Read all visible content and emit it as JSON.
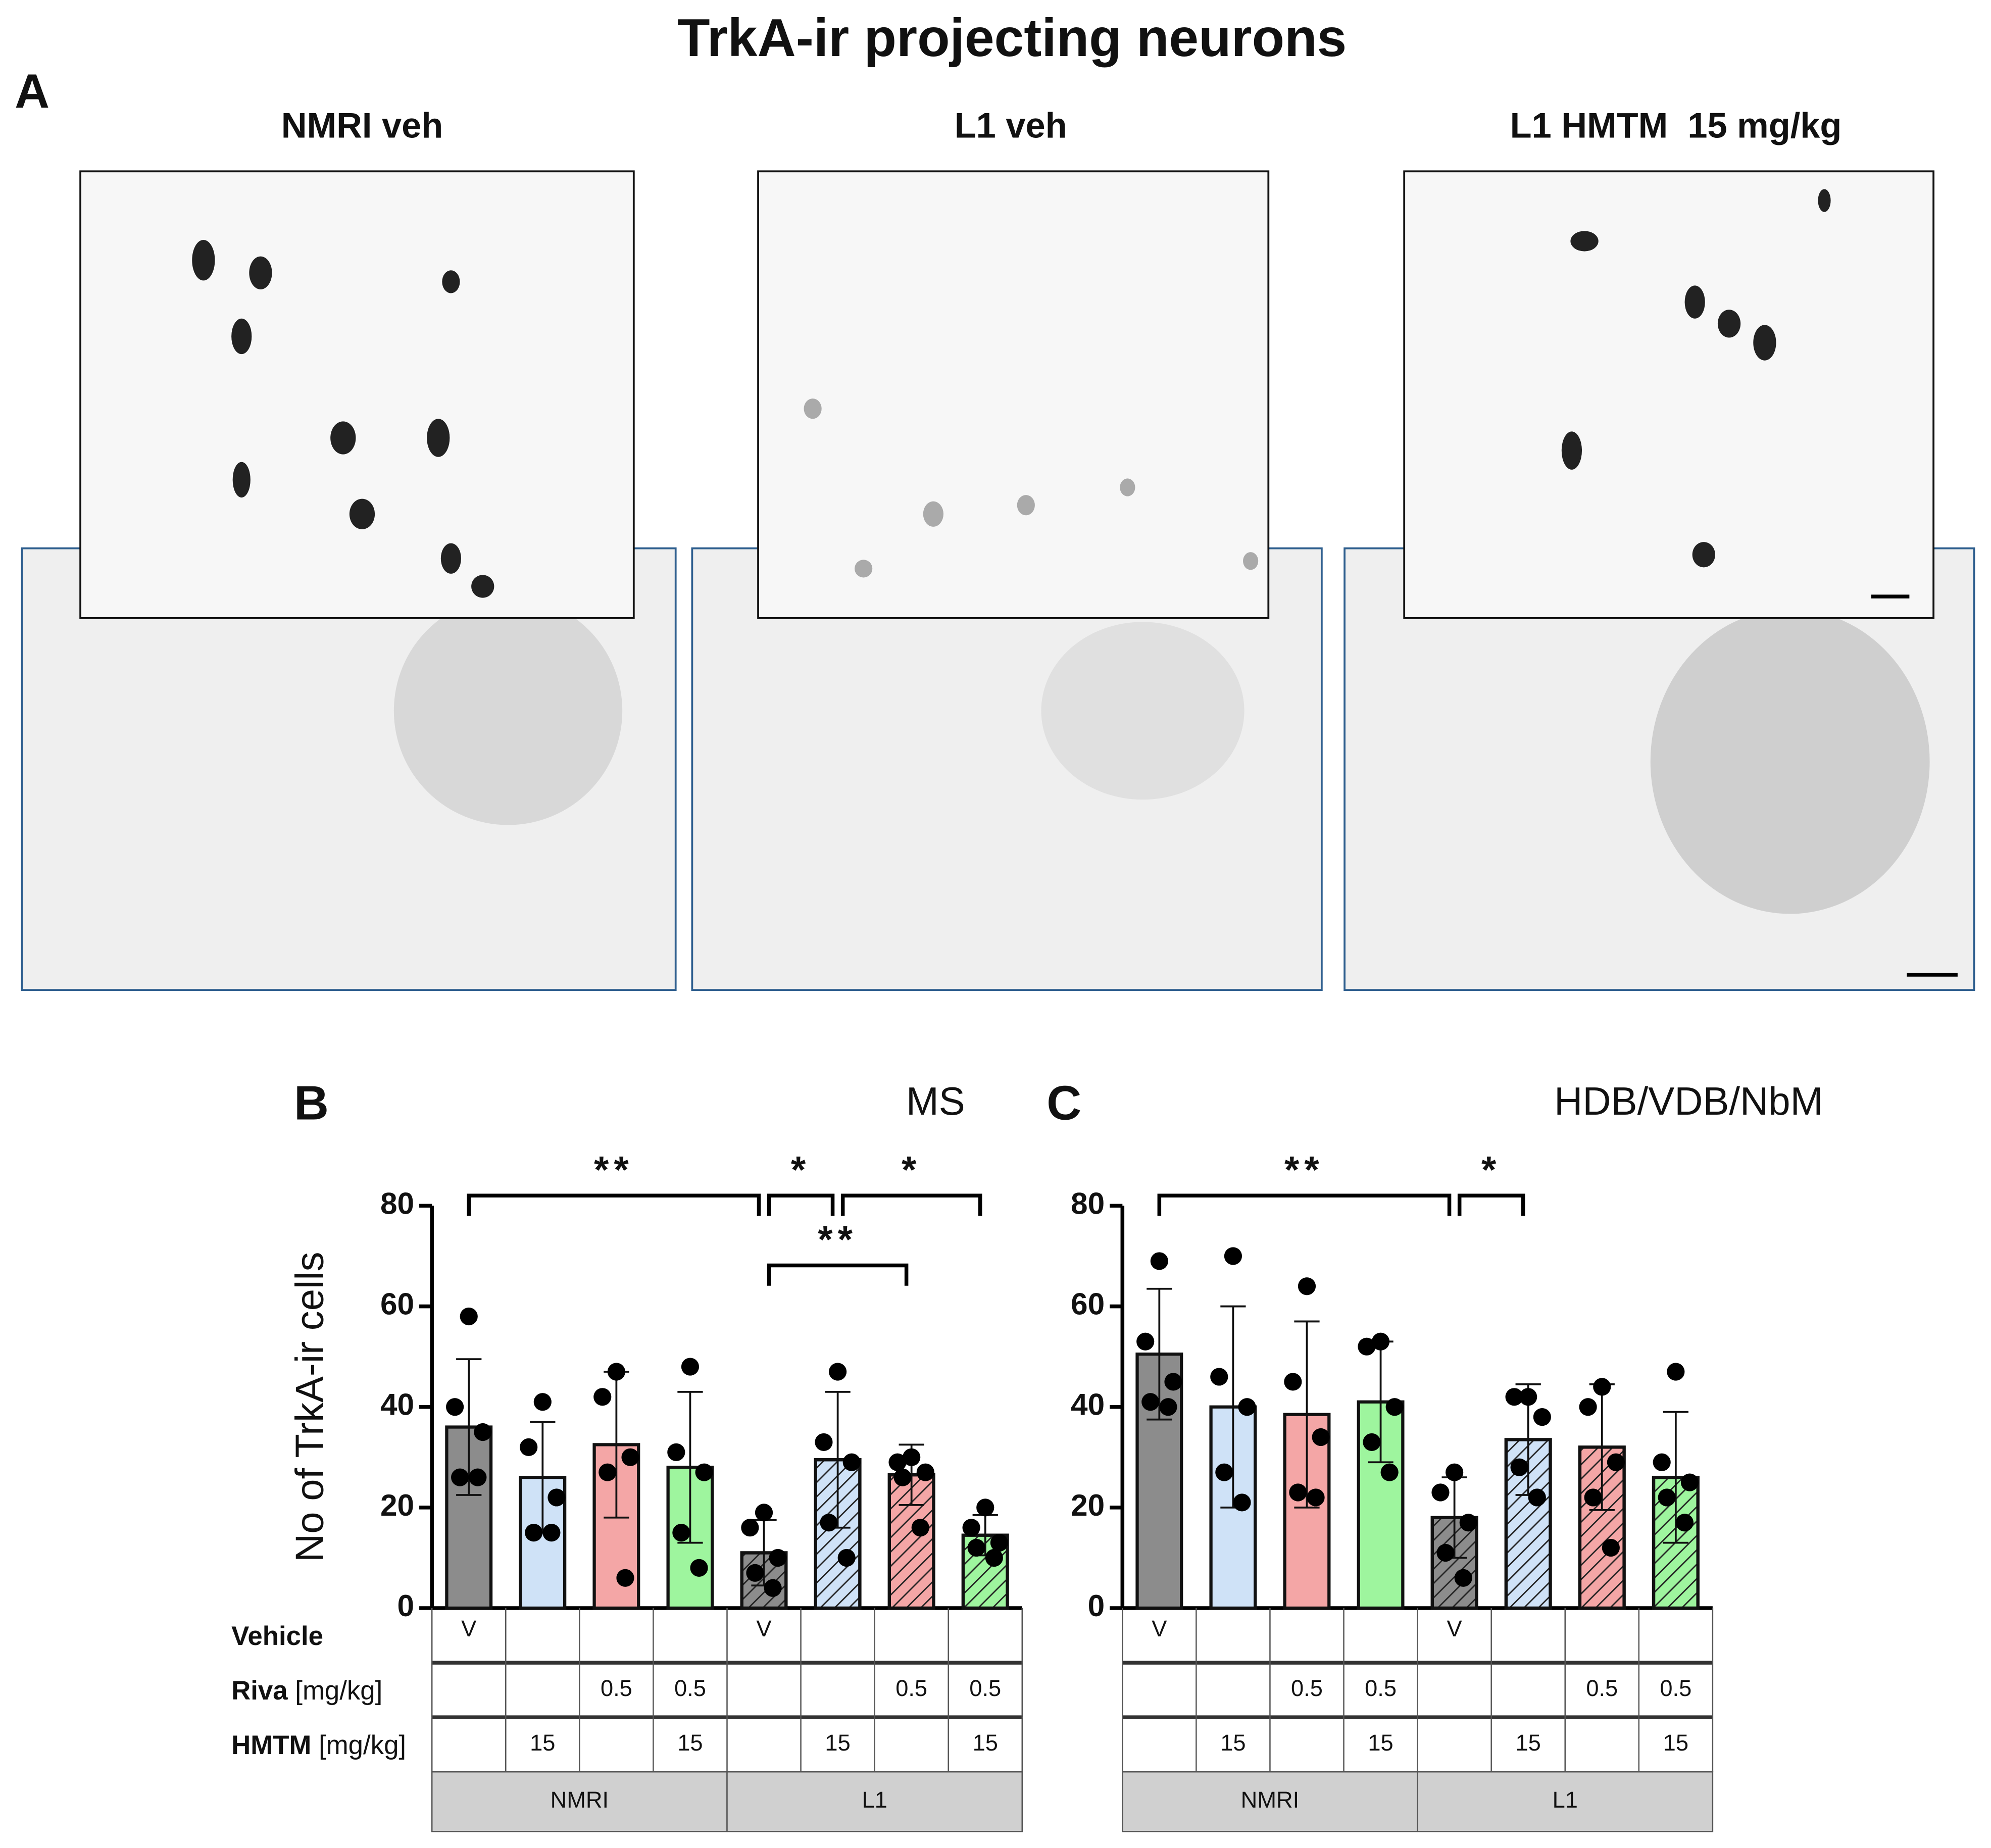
{
  "title": "TrkA-ir projecting neurons",
  "panel_a": {
    "label": "A",
    "images": [
      {
        "label": "NMRI veh"
      },
      {
        "label": "L1 veh"
      },
      {
        "label": "L1 HMTM  15 mg/kg"
      }
    ]
  },
  "chart_data": [
    {
      "type": "bar",
      "panel": "B",
      "title": "MS",
      "ylabel": "No of TrkA-ir cells",
      "ylim": [
        0,
        80
      ],
      "yticks": [
        0,
        20,
        40,
        60,
        80
      ],
      "values": [
        36,
        26,
        32.5,
        28,
        11,
        29.5,
        26.5,
        14.5
      ],
      "errors": [
        13.5,
        11,
        14.5,
        15,
        6.5,
        13.5,
        6,
        4
      ],
      "points": [
        [
          58,
          40,
          35,
          26,
          26
        ],
        [
          41,
          32,
          22,
          15,
          15
        ],
        [
          47,
          42,
          30,
          27,
          6
        ],
        [
          48,
          31,
          27,
          15,
          8
        ],
        [
          19,
          16,
          10,
          7,
          4
        ],
        [
          47,
          33,
          29,
          17,
          10
        ],
        [
          30,
          29,
          27,
          26,
          16
        ],
        [
          20,
          16,
          13,
          12,
          10
        ]
      ],
      "colors": [
        "#8c8c8c",
        "#cfe2f7",
        "#f4a6a6",
        "#9ef59e",
        "#8c8c8c",
        "#cfe2f7",
        "#f4a6a6",
        "#9ef59e"
      ],
      "hatched": [
        false,
        false,
        false,
        false,
        true,
        true,
        true,
        true
      ],
      "significance": [
        {
          "from": 0,
          "to": 4,
          "label": "**"
        },
        {
          "from": 4,
          "to": 5,
          "label": "*"
        },
        {
          "from": 5,
          "to": 7,
          "label": "*"
        },
        {
          "from": 4,
          "to": 6,
          "label": "**"
        }
      ],
      "table": {
        "rows": [
          {
            "label": "Vehicle",
            "cells": [
              "V",
              null,
              null,
              null,
              "V",
              null,
              null,
              null
            ]
          },
          {
            "label": "Riva",
            "unit": "[mg/kg]",
            "cells": [
              null,
              null,
              0.5,
              0.5,
              null,
              null,
              0.5,
              0.5
            ]
          },
          {
            "label": "HMTM",
            "unit": "[mg/kg]",
            "cells": [
              null,
              15,
              null,
              15,
              null,
              15,
              null,
              15
            ]
          }
        ],
        "groups": [
          {
            "label": "NMRI",
            "span": 4
          },
          {
            "label": "L1",
            "span": 4
          }
        ]
      }
    },
    {
      "type": "bar",
      "panel": "C",
      "title": "HDB/VDB/NbM",
      "ylim": [
        0,
        80
      ],
      "yticks": [
        0,
        20,
        40,
        60,
        80
      ],
      "values": [
        50.5,
        40,
        38.5,
        41,
        18,
        33.5,
        32,
        26
      ],
      "errors": [
        13,
        20,
        18.5,
        12,
        8,
        11,
        12.5,
        13
      ],
      "points": [
        [
          69,
          53,
          45,
          41,
          40
        ],
        [
          70,
          46,
          40,
          27,
          21
        ],
        [
          64,
          45,
          34,
          23,
          22
        ],
        [
          53,
          52,
          40,
          33,
          27
        ],
        [
          27,
          23,
          17,
          11,
          6
        ],
        [
          42,
          42,
          38,
          28,
          22
        ],
        [
          44,
          40,
          29,
          22,
          12
        ],
        [
          47,
          29,
          25,
          22,
          17
        ]
      ],
      "colors": [
        "#8c8c8c",
        "#cfe2f7",
        "#f4a6a6",
        "#9ef59e",
        "#8c8c8c",
        "#cfe2f7",
        "#f4a6a6",
        "#9ef59e"
      ],
      "hatched": [
        false,
        false,
        false,
        false,
        true,
        true,
        true,
        true
      ],
      "significance": [
        {
          "from": 0,
          "to": 4,
          "label": "**"
        },
        {
          "from": 4,
          "to": 5,
          "label": "*"
        }
      ],
      "table": {
        "rows": [
          {
            "cells": [
              "V",
              null,
              null,
              null,
              "V",
              null,
              null,
              null
            ]
          },
          {
            "cells": [
              null,
              null,
              0.5,
              0.5,
              null,
              null,
              0.5,
              0.5
            ]
          },
          {
            "cells": [
              null,
              15,
              null,
              15,
              null,
              15,
              null,
              15
            ]
          }
        ],
        "groups": [
          {
            "label": "NMRI",
            "span": 4
          },
          {
            "label": "L1",
            "span": 4
          }
        ]
      }
    }
  ]
}
